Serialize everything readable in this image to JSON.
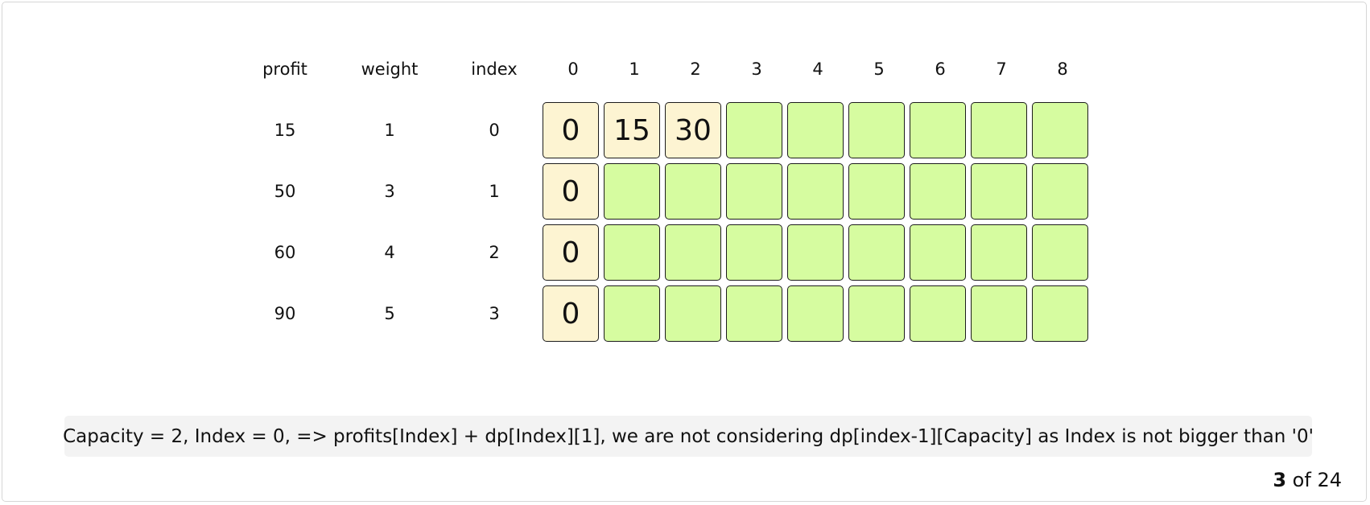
{
  "headers": {
    "profit": "profit",
    "weight": "weight",
    "index": "index",
    "capacities": [
      "0",
      "1",
      "2",
      "3",
      "4",
      "5",
      "6",
      "7",
      "8"
    ]
  },
  "items": [
    {
      "profit": "15",
      "weight": "1",
      "index": "0"
    },
    {
      "profit": "50",
      "weight": "3",
      "index": "1"
    },
    {
      "profit": "60",
      "weight": "4",
      "index": "2"
    },
    {
      "profit": "90",
      "weight": "5",
      "index": "3"
    }
  ],
  "dp": [
    [
      "0",
      "15",
      "30",
      "",
      "",
      "",
      "",
      "",
      ""
    ],
    [
      "0",
      "",
      "",
      "",
      "",
      "",
      "",
      "",
      ""
    ],
    [
      "0",
      "",
      "",
      "",
      "",
      "",
      "",
      "",
      ""
    ],
    [
      "0",
      "",
      "",
      "",
      "",
      "",
      "",
      "",
      ""
    ]
  ],
  "colors": {
    "filled_cell": "#fdf4d2",
    "empty_cell": "#d6fca0",
    "caption_bg": "#f3f3f3"
  },
  "caption": "Capacity = 2, Index = 0, => profits[Index] + dp[Index][1], we are not considering dp[index-1][Capacity] as Index is not bigger than '0'",
  "pager": {
    "current": "3",
    "separator": "of",
    "total": "24"
  }
}
